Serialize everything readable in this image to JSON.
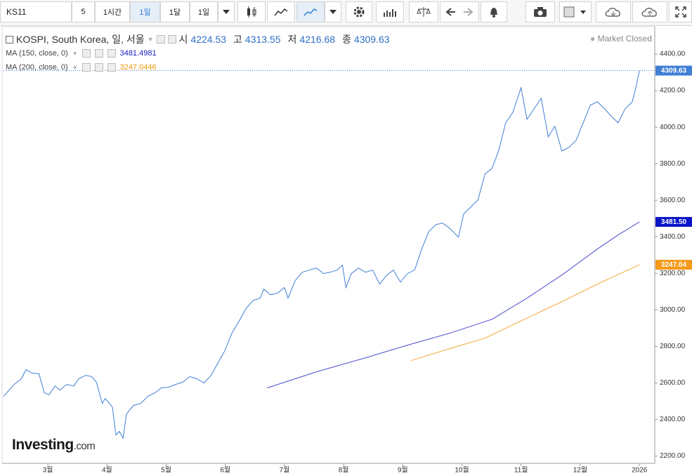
{
  "toolbar": {
    "symbol": "KS11",
    "buttons": [
      "5",
      "1시간",
      "1일",
      "1달",
      "1일"
    ]
  },
  "chart_data": {
    "type": "line",
    "title": "KOSPI, South Korea, 일, 서울",
    "ohlc": [
      {
        "label": "시",
        "value": 4224.53
      },
      {
        "label": "고",
        "value": 4313.55
      },
      {
        "label": "저",
        "value": 4216.68
      },
      {
        "label": "종",
        "value": 4309.63
      }
    ],
    "status": "Market Closed",
    "indicators": [
      {
        "name": "MA (150, close, 0)",
        "value": 3481.4981
      },
      {
        "name": "MA (200, close, 0)",
        "value": 3247.0446
      }
    ],
    "brand": {
      "name": "Investing",
      "suffix": ".com"
    },
    "xlim": [
      2.25,
      13.26
    ],
    "xticks": [
      {
        "value": 3,
        "label": "3월"
      },
      {
        "value": 4,
        "label": "4월"
      },
      {
        "value": 5,
        "label": "5월"
      },
      {
        "value": 6,
        "label": "6월"
      },
      {
        "value": 7,
        "label": "7월"
      },
      {
        "value": 8,
        "label": "8월"
      },
      {
        "value": 9,
        "label": "9월"
      },
      {
        "value": 10,
        "label": "10월"
      },
      {
        "value": 11,
        "label": "11월"
      },
      {
        "value": 12,
        "label": "12월"
      },
      {
        "value": 13,
        "label": "2026"
      }
    ],
    "ylim": [
      2160,
      4550
    ],
    "yticks": [
      {
        "value": 2200,
        "label": "2200.00"
      },
      {
        "value": 2400,
        "label": "2400.00"
      },
      {
        "value": 2600,
        "label": "2600.00"
      },
      {
        "value": 2800,
        "label": "2800.00"
      },
      {
        "value": 3000,
        "label": "3000.00"
      },
      {
        "value": 3200,
        "label": "3200.00"
      },
      {
        "value": 3400,
        "label": "3400.00"
      },
      {
        "value": 3600,
        "label": "3600.00"
      },
      {
        "value": 3800,
        "label": "3800.00"
      },
      {
        "value": 4000,
        "label": "4000.00"
      },
      {
        "value": 4200,
        "label": "4200.00"
      },
      {
        "value": 4400,
        "label": "4400.00"
      }
    ],
    "grid": false,
    "series": [
      {
        "name": "KOSPI",
        "color": "#3f7fd4",
        "last_label": "4309.63",
        "x": [
          2.25,
          2.43,
          2.55,
          2.63,
          2.73,
          2.85,
          2.94,
          3.02,
          3.12,
          3.2,
          3.32,
          3.44,
          3.52,
          3.64,
          3.74,
          3.82,
          3.92,
          3.97,
          4.09,
          4.15,
          4.21,
          4.27,
          4.33,
          4.45,
          4.57,
          4.69,
          4.81,
          4.92,
          5.04,
          5.16,
          5.28,
          5.4,
          5.52,
          5.64,
          5.76,
          5.87,
          5.99,
          6.11,
          6.23,
          6.35,
          6.47,
          6.59,
          6.65,
          6.76,
          6.88,
          7.0,
          7.06,
          7.18,
          7.3,
          7.42,
          7.54,
          7.66,
          7.77,
          7.89,
          7.98,
          8.04,
          8.13,
          8.25,
          8.37,
          8.49,
          8.61,
          8.72,
          8.84,
          8.96,
          9.08,
          9.2,
          9.32,
          9.44,
          9.56,
          9.67,
          9.79,
          9.94,
          10.03,
          10.15,
          10.27,
          10.39,
          10.51,
          10.62,
          10.74,
          10.86,
          11.0,
          11.1,
          11.22,
          11.34,
          11.46,
          11.57,
          11.69,
          11.81,
          11.93,
          12.05,
          12.17,
          12.29,
          12.41,
          12.52,
          12.64,
          12.76,
          12.88,
          12.94,
          13.0
        ],
        "values": [
          2527,
          2592,
          2623,
          2673,
          2654,
          2650,
          2546,
          2535,
          2584,
          2561,
          2592,
          2584,
          2623,
          2642,
          2635,
          2604,
          2488,
          2515,
          2469,
          2316,
          2335,
          2297,
          2431,
          2477,
          2488,
          2527,
          2546,
          2573,
          2577,
          2592,
          2604,
          2635,
          2623,
          2600,
          2642,
          2707,
          2776,
          2872,
          2937,
          3007,
          3052,
          3064,
          3114,
          3083,
          3091,
          3122,
          3064,
          3160,
          3206,
          3218,
          3229,
          3199,
          3206,
          3218,
          3245,
          3122,
          3199,
          3229,
          3206,
          3218,
          3141,
          3187,
          3218,
          3152,
          3199,
          3218,
          3333,
          3429,
          3467,
          3475,
          3448,
          3398,
          3525,
          3563,
          3602,
          3744,
          3775,
          3870,
          4024,
          4081,
          4216,
          4043,
          4101,
          4158,
          3947,
          4005,
          3870,
          3889,
          3928,
          4024,
          4120,
          4139,
          4101,
          4062,
          4024,
          4101,
          4139,
          4216,
          4309.63
        ]
      },
      {
        "name": "MA (150, close, 0)",
        "color": "#4a4ad0",
        "label_color": "#0a14c8",
        "last_label": "3481.50",
        "x": [
          6.71,
          7.54,
          8.37,
          9.08,
          9.79,
          10.51,
          11.1,
          11.69,
          12.29,
          12.64,
          13.0
        ],
        "values": [
          2573,
          2661,
          2738,
          2807,
          2872,
          2949,
          3064,
          3191,
          3333,
          3410,
          3481.4981
        ]
      },
      {
        "name": "MA (200, close, 0)",
        "color": "#f5a431",
        "label_color": "#f59a1b",
        "last_label": "3247.04",
        "x": [
          9.14,
          9.79,
          10.39,
          10.98,
          11.69,
          12.29,
          13.0
        ],
        "values": [
          2722,
          2788,
          2845,
          2937,
          3045,
          3141,
          3247.0446
        ]
      }
    ]
  }
}
